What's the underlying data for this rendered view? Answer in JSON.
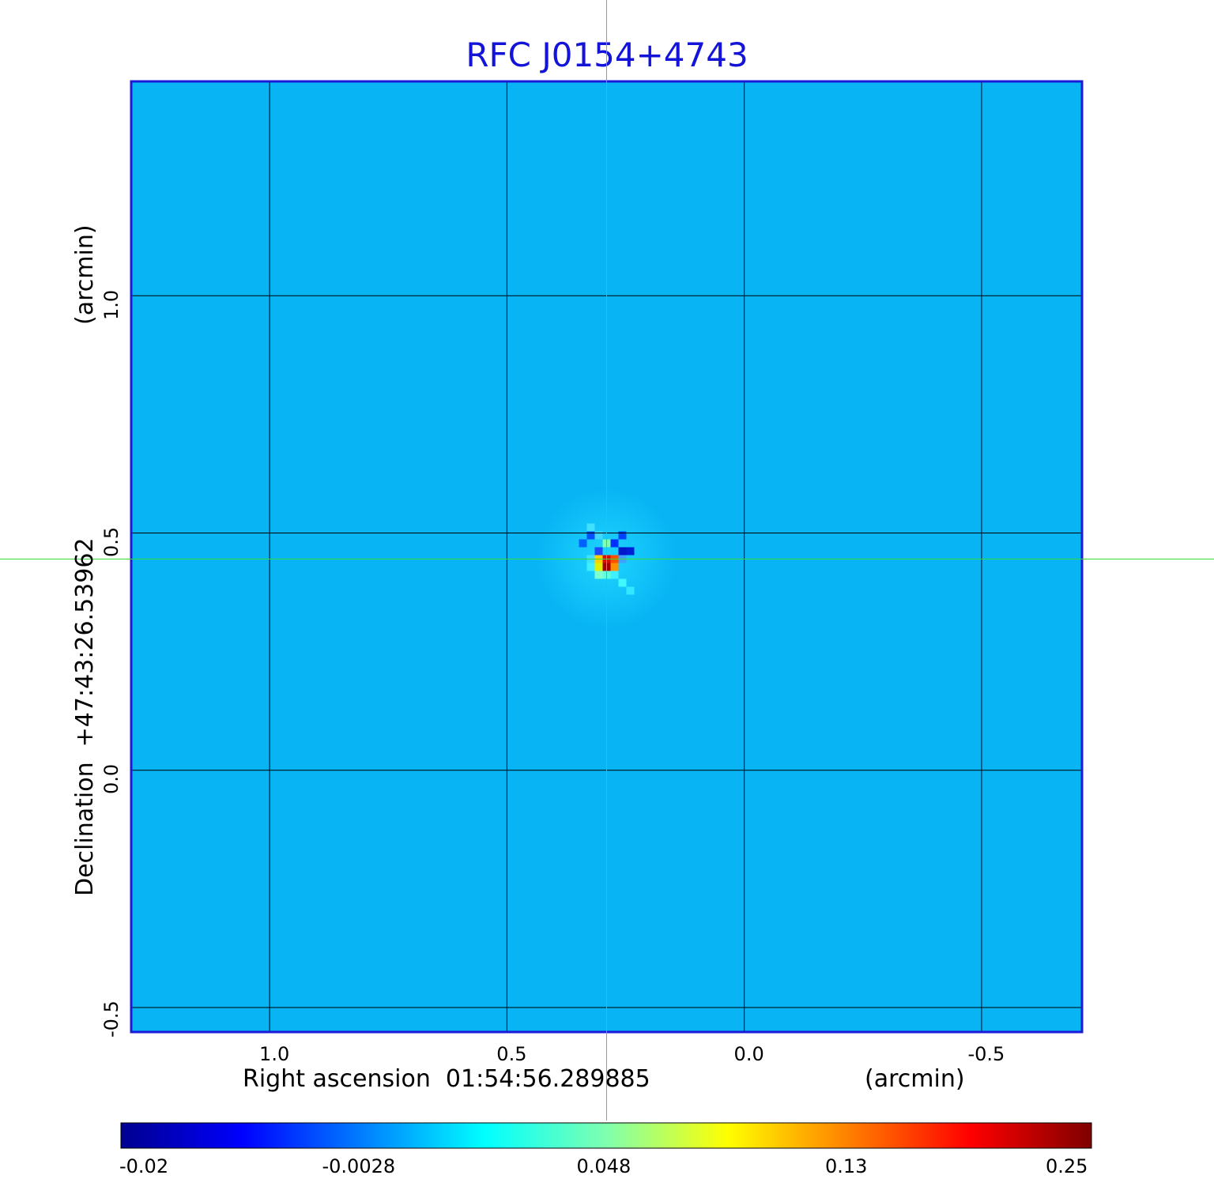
{
  "chart_data": {
    "type": "heatmap",
    "title": "RFC J0154+4743",
    "xlabel": "Right ascension  01:54:56.289885",
    "x_unit": "(arcmin)",
    "ylabel": "Declination  +47:43:26.53962",
    "y_unit": "(arcmin)",
    "x_ticks": [
      1.0,
      0.5,
      0.0,
      -0.5
    ],
    "x_tick_labels": [
      "1.0",
      "0.5",
      "0.0",
      "-0.5"
    ],
    "x_range": [
      1.29,
      -0.71
    ],
    "y_ticks": [
      1.0,
      0.5,
      0.0,
      -0.5
    ],
    "y_tick_labels": [
      "1.0",
      "0.5",
      "0.0",
      "-0.5"
    ],
    "y_range": [
      -0.55,
      1.45
    ],
    "grid": true,
    "crosshair": {
      "x": 0.29,
      "y": 0.445
    },
    "source_peak": {
      "x": 0.29,
      "y": 0.445,
      "value": 0.25
    },
    "colormap": "jet",
    "colorbar_ticks": [
      -0.02,
      -0.0028,
      0.048,
      0.13,
      0.25
    ],
    "colorbar_tick_labels": [
      "-0.02",
      "-0.0028",
      "0.048",
      "0.13",
      "0.25"
    ],
    "colorbar_range": [
      -0.02,
      0.25
    ],
    "background_level": -0.005
  },
  "colors": {
    "title": "#1414d8",
    "frame": "#1a1ad8",
    "grid": "#000000",
    "crosshair": "#33dd33",
    "background_field": "#08b4f4"
  }
}
